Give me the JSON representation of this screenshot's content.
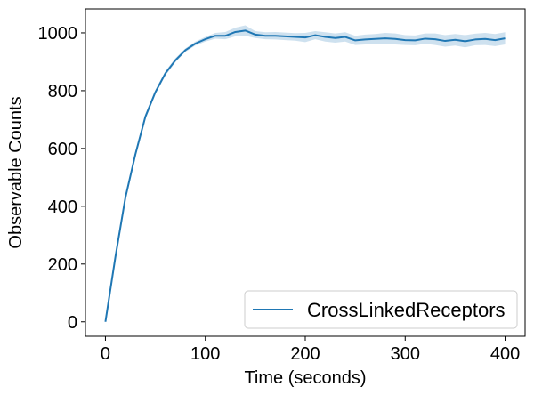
{
  "chart_data": {
    "type": "line",
    "title": "",
    "xlabel": "Time (seconds)",
    "ylabel": "Observable Counts",
    "xlim": [
      -20,
      420
    ],
    "ylim": [
      -50,
      1083
    ],
    "xticks": [
      0,
      100,
      200,
      300,
      400
    ],
    "yticks": [
      0,
      200,
      400,
      600,
      800,
      1000
    ],
    "xtick_labels": [
      "0",
      "100",
      "200",
      "300",
      "400"
    ],
    "ytick_labels": [
      "0",
      "200",
      "400",
      "600",
      "800",
      "1000"
    ],
    "grid": false,
    "legend_position": "bottom-right",
    "colors": {
      "line": "#1f77b4",
      "band": "#1f77b4",
      "band_opacity": 0.22
    },
    "series": [
      {
        "name": "CrossLinkedReceptors",
        "x": [
          0,
          10,
          20,
          30,
          40,
          50,
          60,
          70,
          80,
          90,
          100,
          110,
          120,
          130,
          140,
          150,
          160,
          170,
          180,
          190,
          200,
          210,
          220,
          230,
          240,
          250,
          260,
          270,
          280,
          290,
          300,
          310,
          320,
          330,
          340,
          350,
          360,
          370,
          380,
          390,
          400
        ],
        "y": [
          0,
          225,
          430,
          580,
          710,
          795,
          860,
          905,
          940,
          963,
          978,
          990,
          990,
          1003,
          1008,
          994,
          990,
          990,
          988,
          986,
          984,
          992,
          986,
          982,
          986,
          974,
          977,
          979,
          981,
          979,
          975,
          974,
          980,
          978,
          972,
          976,
          971,
          977,
          979,
          975,
          981
        ],
        "lower": [
          0,
          215,
          420,
          570,
          700,
          787,
          852,
          898,
          934,
          956,
          970,
          980,
          978,
          988,
          990,
          982,
          978,
          977,
          975,
          973,
          968,
          978,
          970,
          966,
          970,
          958,
          960,
          962,
          962,
          960,
          958,
          957,
          962,
          958,
          952,
          956,
          950,
          957,
          958,
          954,
          960
        ],
        "upper": [
          0,
          235,
          440,
          590,
          720,
          803,
          868,
          912,
          946,
          970,
          986,
          1000,
          1003,
          1018,
          1026,
          1006,
          1002,
          1003,
          1001,
          999,
          1000,
          1006,
          1002,
          998,
          1002,
          990,
          994,
          996,
          1000,
          998,
          992,
          991,
          998,
          998,
          992,
          996,
          992,
          997,
          1000,
          996,
          1002
        ]
      }
    ]
  }
}
